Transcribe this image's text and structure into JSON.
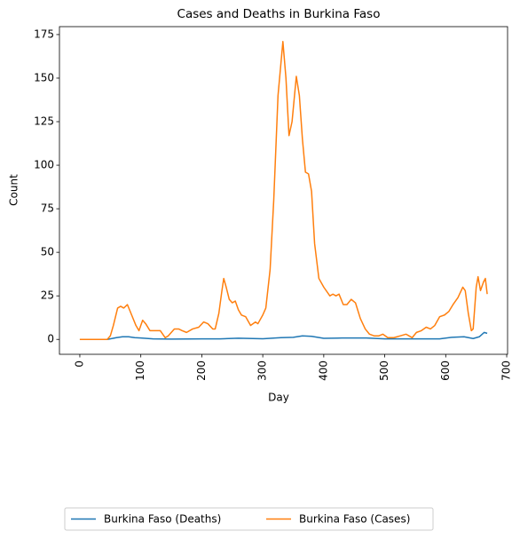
{
  "chart_data": {
    "type": "line",
    "title": "Cases and Deaths in Burkina Faso",
    "x_label": "Day",
    "y_label": "Count",
    "xlim": [
      -33.4,
      701.4
    ],
    "xticks": [
      0,
      100,
      200,
      300,
      400,
      500,
      600,
      700
    ],
    "ylim": [
      -8.55,
      179.55
    ],
    "yticks": [
      0,
      25,
      50,
      75,
      100,
      125,
      150,
      175
    ],
    "legend": "bottom",
    "series": [
      {
        "name": "Burkina Faso (Deaths)",
        "color": "#1f77b4",
        "x": [
          0,
          45,
          60,
          70,
          80,
          90,
          100,
          120,
          150,
          200,
          230,
          260,
          300,
          330,
          350,
          365,
          380,
          400,
          430,
          470,
          500,
          550,
          590,
          610,
          630,
          645,
          655,
          663,
          668
        ],
        "values": [
          0,
          0,
          1,
          1.5,
          1.5,
          1,
          0.8,
          0.3,
          0.2,
          0.3,
          0.3,
          0.7,
          0.4,
          1,
          1.2,
          2,
          1.8,
          0.6,
          0.8,
          0.8,
          0.3,
          0.3,
          0.3,
          1.2,
          1.5,
          0.5,
          1.5,
          4,
          3.5
        ]
      },
      {
        "name": "Burkina Faso (Cases)",
        "color": "#ff7f0e",
        "x": [
          0,
          20,
          45,
          50,
          55,
          62,
          67,
          72,
          78,
          85,
          92,
          97,
          103,
          108,
          115,
          125,
          132,
          140,
          145,
          155,
          162,
          168,
          175,
          185,
          195,
          203,
          210,
          218,
          222,
          228,
          233,
          236,
          240,
          245,
          250,
          255,
          260,
          265,
          272,
          280,
          288,
          292,
          300,
          305,
          312,
          318,
          325,
          333,
          338,
          343,
          348,
          355,
          360,
          365,
          370,
          375,
          380,
          385,
          392,
          400,
          410,
          415,
          420,
          425,
          432,
          438,
          445,
          452,
          460,
          468,
          475,
          483,
          490,
          497,
          505,
          515,
          525,
          535,
          540,
          545,
          552,
          560,
          568,
          575,
          582,
          590,
          598,
          605,
          612,
          620,
          628,
          632,
          637,
          642,
          645,
          650,
          653,
          657,
          662,
          665,
          668
        ],
        "values": [
          0,
          0,
          0,
          2,
          8,
          18,
          19,
          18,
          20,
          14,
          8,
          5,
          11,
          9,
          5,
          5,
          5,
          1,
          2,
          6,
          6,
          5,
          4,
          6,
          7,
          10,
          9,
          6,
          6,
          15,
          28,
          35,
          30,
          23,
          21,
          22,
          17,
          14,
          13,
          8,
          10,
          9,
          14,
          18,
          40,
          80,
          140,
          171,
          150,
          117,
          125,
          151,
          140,
          115,
          96,
          95,
          85,
          55,
          35,
          30,
          25,
          26,
          25,
          26,
          20,
          20,
          23,
          21,
          12,
          6,
          3,
          2,
          2,
          3,
          1,
          1,
          2,
          3,
          2,
          1,
          4,
          5,
          7,
          6,
          8,
          13,
          14,
          16,
          20,
          24,
          30,
          28,
          15,
          5,
          6,
          30,
          36,
          28,
          33,
          35,
          26
        ]
      }
    ]
  }
}
